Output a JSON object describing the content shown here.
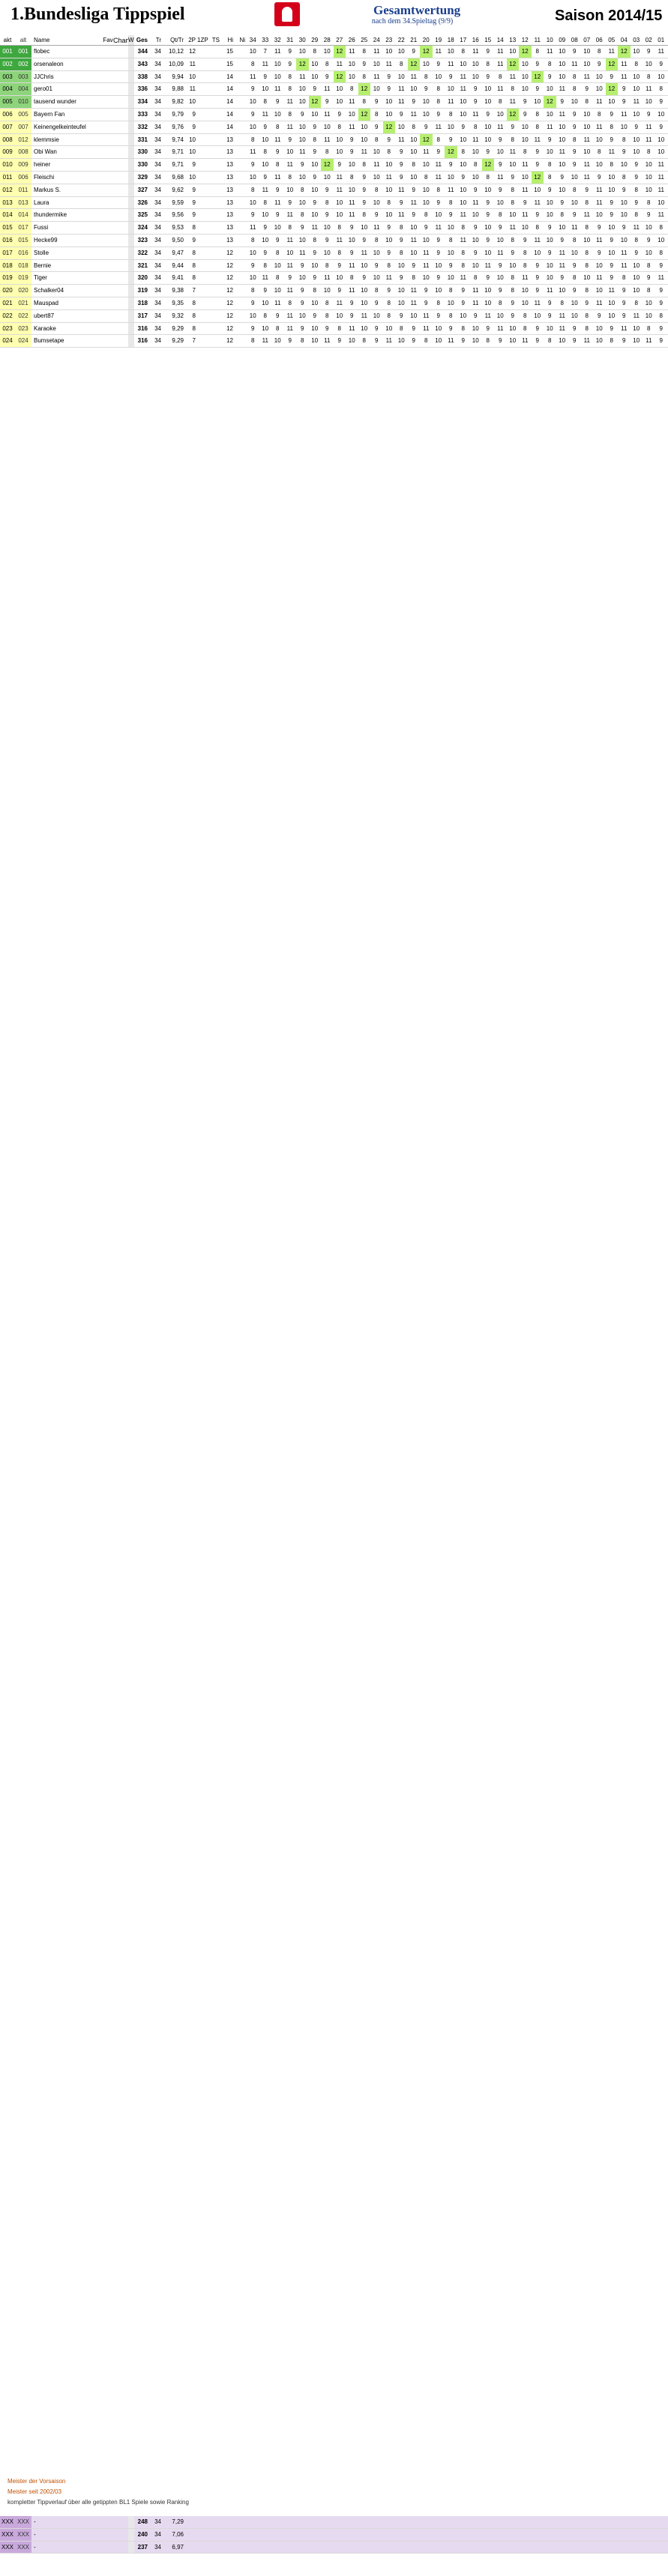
{
  "header": {
    "title": "1.Bundesliga Tippspiel",
    "gesamtwertung": "Gesamtwertung",
    "nach": "nach dem 34.Spieltag (9/9)",
    "saison": "Saison 2014/15"
  },
  "columns": [
    "akt",
    "alt",
    "Name",
    "Fav",
    "Champ",
    "W",
    "Ges",
    "Tr",
    "Qt/Tr",
    "2P",
    "1ZP",
    "TS",
    "Hi",
    "Ni",
    "34",
    "33",
    "32",
    "31",
    "30",
    "29",
    "28",
    "27",
    "26",
    "25",
    "24",
    "23",
    "22",
    "21",
    "20",
    "19",
    "18",
    "17",
    "16",
    "15",
    "14",
    "13",
    "12",
    "11",
    "10",
    "09",
    "08",
    "07",
    "06",
    "05",
    "04",
    "03",
    "02",
    "01"
  ],
  "rows": [
    {
      "akt": "001",
      "alt": "001",
      "name": "flobec",
      "ges": "344",
      "tr": "34",
      "q": "10,12",
      "n": "12",
      "m": "15",
      "sp": [
        "10",
        "7",
        "11",
        "9",
        "10",
        "8",
        "10",
        "12",
        "11",
        "8",
        "11",
        "10",
        "10",
        "9",
        "12",
        "11",
        "10",
        "8",
        "11",
        "9",
        "11",
        "10",
        "12",
        "8",
        "11",
        "10",
        "9",
        "10",
        "8",
        "11",
        "12",
        "10",
        "9",
        "11"
      ],
      "c": "green-pl"
    },
    {
      "akt": "002",
      "alt": "002",
      "name": "orsenaleon",
      "ges": "343",
      "tr": "34",
      "q": "10,09",
      "n": "11",
      "m": "15",
      "sp": [
        "8",
        "11",
        "10",
        "9",
        "12",
        "10",
        "8",
        "11",
        "10",
        "9",
        "10",
        "11",
        "8",
        "12",
        "10",
        "9",
        "11",
        "10",
        "10",
        "8",
        "11",
        "12",
        "10",
        "9",
        "8",
        "10",
        "11",
        "10",
        "9",
        "12",
        "11",
        "8",
        "10",
        "9"
      ],
      "c": "green-pl"
    },
    {
      "akt": "003",
      "alt": "003",
      "name": "JJChris",
      "ges": "338",
      "tr": "34",
      "q": "9,94",
      "n": "10",
      "m": "14",
      "sp": [
        "11",
        "9",
        "10",
        "8",
        "11",
        "10",
        "9",
        "12",
        "10",
        "8",
        "11",
        "9",
        "10",
        "11",
        "8",
        "10",
        "9",
        "11",
        "10",
        "9",
        "8",
        "11",
        "10",
        "12",
        "9",
        "10",
        "8",
        "11",
        "10",
        "9",
        "11",
        "10",
        "8",
        "10"
      ],
      "c": "green-pl2"
    },
    {
      "akt": "004",
      "alt": "004",
      "name": "gero01",
      "ges": "336",
      "tr": "34",
      "q": "9,88",
      "n": "11",
      "m": "14",
      "sp": [
        "9",
        "10",
        "11",
        "8",
        "10",
        "9",
        "11",
        "10",
        "8",
        "12",
        "10",
        "9",
        "11",
        "10",
        "9",
        "8",
        "10",
        "11",
        "9",
        "10",
        "11",
        "8",
        "10",
        "9",
        "10",
        "11",
        "8",
        "9",
        "10",
        "12",
        "9",
        "10",
        "11",
        "8"
      ],
      "c": "green-pl2"
    },
    {
      "akt": "005",
      "alt": "010",
      "name": "tausend wunder",
      "ges": "334",
      "tr": "34",
      "q": "9,82",
      "n": "10",
      "m": "14",
      "sp": [
        "10",
        "8",
        "9",
        "11",
        "10",
        "12",
        "9",
        "10",
        "11",
        "8",
        "9",
        "10",
        "11",
        "9",
        "10",
        "8",
        "11",
        "10",
        "9",
        "10",
        "8",
        "11",
        "9",
        "10",
        "12",
        "9",
        "10",
        "8",
        "11",
        "10",
        "9",
        "11",
        "10",
        "9"
      ],
      "c": "green-pl2"
    },
    {
      "akt": "006",
      "alt": "005",
      "name": "Bayern Fan",
      "ges": "333",
      "tr": "34",
      "q": "9,79",
      "n": "9",
      "m": "14",
      "sp": [
        "9",
        "11",
        "10",
        "8",
        "9",
        "10",
        "11",
        "9",
        "10",
        "12",
        "8",
        "10",
        "9",
        "11",
        "10",
        "9",
        "8",
        "10",
        "11",
        "9",
        "10",
        "12",
        "9",
        "8",
        "10",
        "11",
        "9",
        "10",
        "8",
        "9",
        "11",
        "10",
        "9",
        "10"
      ],
      "c": "yellow-pl"
    },
    {
      "akt": "007",
      "alt": "007",
      "name": "Keinengelkeinteufel",
      "ges": "332",
      "tr": "34",
      "q": "9,76",
      "n": "9",
      "m": "14",
      "sp": [
        "10",
        "9",
        "8",
        "11",
        "10",
        "9",
        "10",
        "8",
        "11",
        "10",
        "9",
        "12",
        "10",
        "8",
        "9",
        "11",
        "10",
        "9",
        "8",
        "10",
        "11",
        "9",
        "10",
        "8",
        "11",
        "10",
        "9",
        "10",
        "11",
        "8",
        "10",
        "9",
        "11",
        "9"
      ],
      "c": "yellow-pl"
    },
    {
      "akt": "008",
      "alt": "012",
      "name": "klemmsie",
      "ges": "331",
      "tr": "34",
      "q": "9,74",
      "n": "10",
      "m": "13",
      "sp": [
        "8",
        "10",
        "11",
        "9",
        "10",
        "8",
        "11",
        "10",
        "9",
        "10",
        "8",
        "9",
        "11",
        "10",
        "12",
        "8",
        "9",
        "10",
        "11",
        "10",
        "9",
        "8",
        "10",
        "11",
        "9",
        "10",
        "8",
        "11",
        "10",
        "9",
        "8",
        "10",
        "11",
        "10"
      ],
      "c": "yellow-pl"
    },
    {
      "akt": "009",
      "alt": "008",
      "name": "Obi Wan",
      "ges": "330",
      "tr": "34",
      "q": "9,71",
      "n": "10",
      "m": "13",
      "sp": [
        "11",
        "8",
        "9",
        "10",
        "11",
        "9",
        "8",
        "10",
        "9",
        "11",
        "10",
        "8",
        "9",
        "10",
        "11",
        "9",
        "12",
        "8",
        "10",
        "9",
        "10",
        "11",
        "8",
        "9",
        "10",
        "11",
        "9",
        "10",
        "8",
        "11",
        "9",
        "10",
        "8",
        "10"
      ],
      "c": "yellow-pl"
    },
    {
      "akt": "010",
      "alt": "009",
      "name": "heiner",
      "ges": "330",
      "tr": "34",
      "q": "9,71",
      "n": "9",
      "m": "13",
      "sp": [
        "9",
        "10",
        "8",
        "11",
        "9",
        "10",
        "12",
        "9",
        "10",
        "8",
        "11",
        "10",
        "9",
        "8",
        "10",
        "11",
        "9",
        "10",
        "8",
        "12",
        "9",
        "10",
        "11",
        "9",
        "8",
        "10",
        "9",
        "11",
        "10",
        "8",
        "10",
        "9",
        "10",
        "11"
      ],
      "c": "yellow-pl"
    },
    {
      "akt": "011",
      "alt": "006",
      "name": "Fleischi",
      "ges": "329",
      "tr": "34",
      "q": "9,68",
      "n": "10",
      "m": "13",
      "sp": [
        "10",
        "9",
        "11",
        "8",
        "10",
        "9",
        "10",
        "11",
        "8",
        "9",
        "10",
        "11",
        "9",
        "10",
        "8",
        "11",
        "10",
        "9",
        "10",
        "8",
        "11",
        "9",
        "10",
        "12",
        "8",
        "9",
        "10",
        "11",
        "9",
        "10",
        "8",
        "9",
        "10",
        "11"
      ],
      "c": "yellow-pl"
    },
    {
      "akt": "012",
      "alt": "011",
      "name": "Markus S.",
      "ges": "327",
      "tr": "34",
      "q": "9,62",
      "n": "9",
      "m": "13",
      "sp": [
        "8",
        "11",
        "9",
        "10",
        "8",
        "10",
        "9",
        "11",
        "10",
        "9",
        "8",
        "10",
        "11",
        "9",
        "10",
        "8",
        "11",
        "10",
        "9",
        "10",
        "9",
        "8",
        "11",
        "10",
        "9",
        "10",
        "8",
        "9",
        "11",
        "10",
        "9",
        "8",
        "10",
        "11"
      ],
      "c": "yellow-pl"
    },
    {
      "akt": "013",
      "alt": "013",
      "name": "Laura",
      "ges": "326",
      "tr": "34",
      "q": "9,59",
      "n": "9",
      "m": "13",
      "sp": [
        "10",
        "8",
        "11",
        "9",
        "10",
        "9",
        "8",
        "10",
        "11",
        "9",
        "10",
        "8",
        "9",
        "11",
        "10",
        "9",
        "8",
        "10",
        "11",
        "9",
        "10",
        "8",
        "9",
        "11",
        "10",
        "9",
        "10",
        "8",
        "11",
        "9",
        "10",
        "9",
        "8",
        "10"
      ],
      "c": "yellow-pl"
    },
    {
      "akt": "014",
      "alt": "014",
      "name": "thundermike",
      "ges": "325",
      "tr": "34",
      "q": "9,56",
      "n": "9",
      "m": "13",
      "sp": [
        "9",
        "10",
        "9",
        "11",
        "8",
        "10",
        "9",
        "10",
        "11",
        "8",
        "9",
        "10",
        "11",
        "9",
        "8",
        "10",
        "9",
        "11",
        "10",
        "9",
        "8",
        "10",
        "11",
        "9",
        "10",
        "8",
        "9",
        "11",
        "10",
        "9",
        "10",
        "8",
        "9",
        "11"
      ],
      "c": "yellow-pl"
    },
    {
      "akt": "015",
      "alt": "017",
      "name": "Fussi",
      "ges": "324",
      "tr": "34",
      "q": "9,53",
      "n": "8",
      "m": "13",
      "sp": [
        "11",
        "9",
        "10",
        "8",
        "9",
        "11",
        "10",
        "8",
        "9",
        "10",
        "11",
        "9",
        "8",
        "10",
        "9",
        "11",
        "10",
        "8",
        "9",
        "10",
        "9",
        "11",
        "10",
        "8",
        "9",
        "10",
        "11",
        "8",
        "9",
        "10",
        "9",
        "11",
        "10",
        "8"
      ],
      "c": "yellow-pl"
    },
    {
      "akt": "016",
      "alt": "015",
      "name": "Hecke99",
      "ges": "323",
      "tr": "34",
      "q": "9,50",
      "n": "9",
      "m": "13",
      "sp": [
        "8",
        "10",
        "9",
        "11",
        "10",
        "8",
        "9",
        "11",
        "10",
        "9",
        "8",
        "10",
        "9",
        "11",
        "10",
        "9",
        "8",
        "11",
        "10",
        "9",
        "10",
        "8",
        "9",
        "11",
        "10",
        "9",
        "8",
        "10",
        "11",
        "9",
        "10",
        "8",
        "9",
        "10"
      ],
      "c": "yellow-pl"
    },
    {
      "akt": "017",
      "alt": "016",
      "name": "Stolle",
      "ges": "322",
      "tr": "34",
      "q": "9,47",
      "n": "8",
      "m": "12",
      "sp": [
        "10",
        "9",
        "8",
        "10",
        "11",
        "9",
        "10",
        "8",
        "9",
        "11",
        "10",
        "9",
        "8",
        "10",
        "11",
        "9",
        "10",
        "8",
        "9",
        "10",
        "11",
        "9",
        "8",
        "10",
        "9",
        "11",
        "10",
        "8",
        "9",
        "10",
        "11",
        "9",
        "10",
        "8"
      ],
      "c": "yellow-pl"
    },
    {
      "akt": "018",
      "alt": "018",
      "name": "Bernie",
      "ges": "321",
      "tr": "34",
      "q": "9,44",
      "n": "8",
      "m": "12",
      "sp": [
        "9",
        "8",
        "10",
        "11",
        "9",
        "10",
        "8",
        "9",
        "11",
        "10",
        "9",
        "8",
        "10",
        "9",
        "11",
        "10",
        "9",
        "8",
        "10",
        "11",
        "9",
        "10",
        "8",
        "9",
        "10",
        "11",
        "9",
        "8",
        "10",
        "9",
        "11",
        "10",
        "8",
        "9"
      ],
      "c": "yellow-pl"
    },
    {
      "akt": "019",
      "alt": "019",
      "name": "Tiger",
      "ges": "320",
      "tr": "34",
      "q": "9,41",
      "n": "8",
      "m": "12",
      "sp": [
        "10",
        "11",
        "8",
        "9",
        "10",
        "9",
        "11",
        "10",
        "8",
        "9",
        "10",
        "11",
        "9",
        "8",
        "10",
        "9",
        "10",
        "11",
        "8",
        "9",
        "10",
        "8",
        "11",
        "9",
        "10",
        "9",
        "8",
        "10",
        "11",
        "9",
        "8",
        "10",
        "9",
        "11"
      ],
      "c": "yellow-pl"
    },
    {
      "akt": "020",
      "alt": "020",
      "name": "Schalker04",
      "ges": "319",
      "tr": "34",
      "q": "9,38",
      "n": "7",
      "m": "12",
      "sp": [
        "8",
        "9",
        "10",
        "11",
        "9",
        "8",
        "10",
        "9",
        "11",
        "10",
        "8",
        "9",
        "10",
        "11",
        "9",
        "10",
        "8",
        "9",
        "11",
        "10",
        "9",
        "8",
        "10",
        "9",
        "11",
        "10",
        "9",
        "8",
        "10",
        "11",
        "9",
        "10",
        "8",
        "9"
      ],
      "c": "yellow-pl"
    },
    {
      "akt": "021",
      "alt": "021",
      "name": "Mauspad",
      "ges": "318",
      "tr": "34",
      "q": "9,35",
      "n": "8",
      "m": "12",
      "sp": [
        "9",
        "10",
        "11",
        "8",
        "9",
        "10",
        "8",
        "11",
        "9",
        "10",
        "9",
        "8",
        "10",
        "11",
        "9",
        "8",
        "10",
        "9",
        "11",
        "10",
        "8",
        "9",
        "10",
        "11",
        "9",
        "8",
        "10",
        "9",
        "11",
        "10",
        "9",
        "8",
        "10",
        "9"
      ],
      "c": "yellow-pl"
    },
    {
      "akt": "022",
      "alt": "022",
      "name": "ubert87",
      "ges": "317",
      "tr": "34",
      "q": "9,32",
      "n": "8",
      "m": "12",
      "sp": [
        "10",
        "8",
        "9",
        "11",
        "10",
        "9",
        "8",
        "10",
        "9",
        "11",
        "10",
        "8",
        "9",
        "10",
        "11",
        "9",
        "8",
        "10",
        "9",
        "11",
        "10",
        "9",
        "8",
        "10",
        "9",
        "11",
        "10",
        "8",
        "9",
        "10",
        "9",
        "11",
        "10",
        "8"
      ],
      "c": "yellow-pl"
    },
    {
      "akt": "023",
      "alt": "023",
      "name": "Karaoke",
      "ges": "316",
      "tr": "34",
      "q": "9,29",
      "n": "8",
      "m": "12",
      "sp": [
        "9",
        "10",
        "8",
        "11",
        "9",
        "10",
        "9",
        "8",
        "11",
        "10",
        "9",
        "10",
        "8",
        "9",
        "11",
        "10",
        "9",
        "8",
        "10",
        "9",
        "11",
        "10",
        "8",
        "9",
        "10",
        "11",
        "9",
        "8",
        "10",
        "9",
        "11",
        "10",
        "8",
        "9"
      ],
      "c": "yellow-pl"
    },
    {
      "akt": "024",
      "alt": "024",
      "name": "Bumsetape",
      "ges": "316",
      "tr": "34",
      "q": "9,29",
      "n": "7",
      "m": "12",
      "sp": [
        "8",
        "11",
        "10",
        "9",
        "8",
        "10",
        "11",
        "9",
        "10",
        "8",
        "9",
        "11",
        "10",
        "9",
        "8",
        "10",
        "11",
        "9",
        "10",
        "8",
        "9",
        "10",
        "11",
        "9",
        "8",
        "10",
        "9",
        "11",
        "10",
        "8",
        "9",
        "10",
        "11",
        "9"
      ],
      "c": "yellow-pl"
    }
  ],
  "legend": {
    "line1": "Meister der Vorsaison",
    "line2": "Meister seit 2002/03"
  },
  "footer_note": "kompletter Tippverlauf über alle getippten BL1 Spiele sowie Ranking",
  "bottom_rows": [
    {
      "akt": "XXX",
      "alt": "XXX",
      "name": "-",
      "ges": "248",
      "tr": "34",
      "q": "7,29"
    },
    {
      "akt": "XXX",
      "alt": "XXX",
      "name": "-",
      "ges": "240",
      "tr": "34",
      "q": "7,06"
    },
    {
      "akt": "XXX",
      "alt": "XXX",
      "name": "-",
      "ges": "237",
      "tr": "34",
      "q": "6,97"
    }
  ]
}
